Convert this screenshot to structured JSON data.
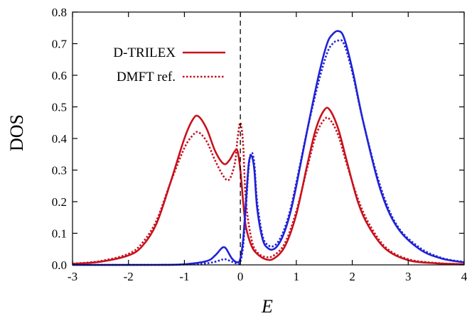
{
  "chart_data": {
    "type": "line",
    "xlabel": "E",
    "ylabel": "DOS",
    "xlim": [
      -3,
      4
    ],
    "ylim": [
      0,
      0.8
    ],
    "xticks": [
      -3,
      -2,
      -1,
      0,
      1,
      2,
      3,
      4
    ],
    "yticks": [
      0.0,
      0.1,
      0.2,
      0.3,
      0.4,
      0.5,
      0.6,
      0.7,
      0.8
    ],
    "grid": false,
    "legend_position": "top-left",
    "legend": [
      {
        "label": "D-TRILEX",
        "style": "solid"
      },
      {
        "label": "DMFT ref.",
        "style": "dotted"
      }
    ],
    "reference_line": {
      "x": 0,
      "style": "dashed",
      "color": "#000000"
    },
    "colors": {
      "red": "#c8121e",
      "blue": "#1f22d6"
    },
    "series": [
      {
        "color": "red",
        "style": "solid",
        "x": [
          -3,
          -2.5,
          -2,
          -1.75,
          -1.5,
          -1.25,
          -1.0,
          -0.85,
          -0.75,
          -0.6,
          -0.45,
          -0.3,
          -0.2,
          -0.1,
          -0.05,
          0,
          0.05,
          0.1,
          0.2,
          0.3,
          0.45,
          0.6,
          0.8,
          1.0,
          1.2,
          1.35,
          1.5,
          1.6,
          1.75,
          1.9,
          2.1,
          2.3,
          2.6,
          3.0,
          3.5,
          4.0
        ],
        "y": [
          0.003,
          0.01,
          0.03,
          0.06,
          0.13,
          0.26,
          0.4,
          0.46,
          0.47,
          0.43,
          0.36,
          0.32,
          0.33,
          0.36,
          0.36,
          0.3,
          0.2,
          0.12,
          0.06,
          0.035,
          0.018,
          0.02,
          0.06,
          0.16,
          0.32,
          0.43,
          0.49,
          0.49,
          0.43,
          0.33,
          0.2,
          0.12,
          0.05,
          0.015,
          0.005,
          0.002
        ]
      },
      {
        "color": "red",
        "style": "dotted",
        "x": [
          -3,
          -2.5,
          -2,
          -1.75,
          -1.5,
          -1.25,
          -1.0,
          -0.85,
          -0.75,
          -0.6,
          -0.45,
          -0.3,
          -0.2,
          -0.1,
          -0.05,
          0,
          0.05,
          0.1,
          0.2,
          0.3,
          0.45,
          0.6,
          0.8,
          1.0,
          1.2,
          1.35,
          1.5,
          1.6,
          1.75,
          1.9,
          2.1,
          2.3,
          2.6,
          3.0,
          3.5,
          4.0
        ],
        "y": [
          0.004,
          0.012,
          0.035,
          0.07,
          0.14,
          0.26,
          0.37,
          0.41,
          0.42,
          0.39,
          0.33,
          0.28,
          0.27,
          0.32,
          0.4,
          0.45,
          0.38,
          0.2,
          0.08,
          0.04,
          0.025,
          0.03,
          0.07,
          0.17,
          0.31,
          0.41,
          0.46,
          0.46,
          0.41,
          0.32,
          0.21,
          0.13,
          0.055,
          0.018,
          0.006,
          0.002
        ]
      },
      {
        "color": "blue",
        "style": "solid",
        "x": [
          -3,
          -1.5,
          -1.0,
          -0.6,
          -0.45,
          -0.35,
          -0.3,
          -0.25,
          -0.15,
          -0.05,
          0,
          0.05,
          0.1,
          0.15,
          0.2,
          0.25,
          0.3,
          0.4,
          0.5,
          0.6,
          0.7,
          0.8,
          0.9,
          1.0,
          1.2,
          1.4,
          1.55,
          1.65,
          1.75,
          1.85,
          2.0,
          2.2,
          2.5,
          2.8,
          3.2,
          3.6,
          4.0
        ],
        "y": [
          0,
          0,
          0.002,
          0.012,
          0.03,
          0.05,
          0.056,
          0.05,
          0.02,
          0.008,
          0.02,
          0.08,
          0.2,
          0.32,
          0.345,
          0.3,
          0.18,
          0.08,
          0.052,
          0.05,
          0.07,
          0.11,
          0.17,
          0.25,
          0.43,
          0.6,
          0.7,
          0.73,
          0.74,
          0.72,
          0.62,
          0.45,
          0.24,
          0.12,
          0.05,
          0.02,
          0.008
        ]
      },
      {
        "color": "blue",
        "style": "dotted",
        "x": [
          -3,
          -1.5,
          -1.0,
          -0.6,
          -0.45,
          -0.35,
          -0.3,
          -0.25,
          -0.15,
          -0.05,
          0,
          0.05,
          0.1,
          0.15,
          0.2,
          0.25,
          0.3,
          0.4,
          0.5,
          0.6,
          0.7,
          0.8,
          0.9,
          1.0,
          1.2,
          1.4,
          1.55,
          1.65,
          1.75,
          1.85,
          2.0,
          2.2,
          2.5,
          2.8,
          3.2,
          3.6,
          4.0
        ],
        "y": [
          0,
          0,
          0.001,
          0.005,
          0.01,
          0.015,
          0.018,
          0.017,
          0.01,
          0.004,
          0.01,
          0.06,
          0.18,
          0.31,
          0.355,
          0.32,
          0.2,
          0.09,
          0.062,
          0.06,
          0.08,
          0.12,
          0.18,
          0.26,
          0.43,
          0.58,
          0.67,
          0.7,
          0.71,
          0.7,
          0.61,
          0.45,
          0.25,
          0.125,
          0.055,
          0.022,
          0.009
        ]
      }
    ]
  }
}
